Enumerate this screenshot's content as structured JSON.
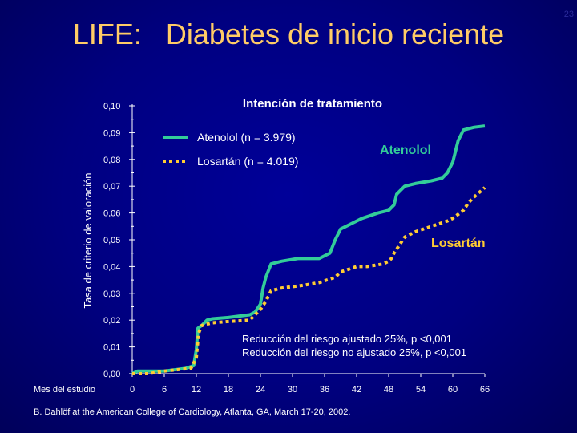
{
  "slide_number": "23",
  "title": "LIFE:   Diabetes de inicio reciente",
  "citation": "B. Dahlöf at the American College of Cardiology, Atlanta, GA,  March 17-20, 2002.",
  "colors": {
    "background": "#000080",
    "title": "#ffcc66",
    "atenolol": "#33cc99",
    "losartan": "#ffcc33",
    "text": "#ffffff"
  },
  "chart_data": {
    "type": "line",
    "title": "Intención de tratamiento",
    "xlabel": "Mes del estudio",
    "ylabel": "Tasa de criterio de valoración",
    "x_ticks": [
      "0",
      "6",
      "12",
      "18",
      "24",
      "30",
      "36",
      "42",
      "48",
      "54",
      "60",
      "66"
    ],
    "y_ticks": [
      "0,00",
      "0,01",
      "0,02",
      "0,03",
      "0,04",
      "0,05",
      "0,06",
      "0,07",
      "0,08",
      "0,09",
      "0,10"
    ],
    "xlim": [
      0,
      66
    ],
    "ylim": [
      0,
      0.1
    ],
    "legend": [
      "Atenolol  (n = 3.979)",
      "Losartán (n = 4.019)"
    ],
    "annotations": {
      "atenolol_label": "Atenolol",
      "losartan_label": "Losartán",
      "adjusted": "Reducción del riesgo ajustado        25%,  p <0,001",
      "unadjusted": "Reducción del riesgo no ajustado  25%, p <0,001"
    },
    "series": [
      {
        "name": "Atenolol",
        "points": [
          [
            0,
            0.0
          ],
          [
            1,
            0.001
          ],
          [
            3,
            0.001
          ],
          [
            6,
            0.001
          ],
          [
            10,
            0.002
          ],
          [
            11.5,
            0.003
          ],
          [
            12,
            0.009
          ],
          [
            12.3,
            0.017
          ],
          [
            13,
            0.018
          ],
          [
            14,
            0.02
          ],
          [
            15,
            0.0205
          ],
          [
            18,
            0.021
          ],
          [
            22,
            0.022
          ],
          [
            23,
            0.023
          ],
          [
            24,
            0.026
          ],
          [
            24.5,
            0.032
          ],
          [
            25,
            0.036
          ],
          [
            26,
            0.041
          ],
          [
            28,
            0.042
          ],
          [
            31,
            0.043
          ],
          [
            33,
            0.043
          ],
          [
            35,
            0.043
          ],
          [
            36,
            0.044
          ],
          [
            37,
            0.045
          ],
          [
            38,
            0.05
          ],
          [
            39,
            0.054
          ],
          [
            40,
            0.055
          ],
          [
            41,
            0.056
          ],
          [
            43,
            0.058
          ],
          [
            46,
            0.06
          ],
          [
            48,
            0.061
          ],
          [
            49,
            0.063
          ],
          [
            49.5,
            0.067
          ],
          [
            51,
            0.07
          ],
          [
            53,
            0.071
          ],
          [
            56,
            0.072
          ],
          [
            58,
            0.073
          ],
          [
            59,
            0.075
          ],
          [
            60,
            0.079
          ],
          [
            61,
            0.087
          ],
          [
            62,
            0.091
          ],
          [
            64,
            0.092
          ],
          [
            66,
            0.0925
          ]
        ]
      },
      {
        "name": "Losartán",
        "points": [
          [
            0,
            0.0
          ],
          [
            3,
            0.0
          ],
          [
            6,
            0.001
          ],
          [
            11,
            0.002
          ],
          [
            12,
            0.006
          ],
          [
            12.4,
            0.015
          ],
          [
            13,
            0.018
          ],
          [
            15,
            0.019
          ],
          [
            18,
            0.0195
          ],
          [
            22,
            0.02
          ],
          [
            23,
            0.022
          ],
          [
            24,
            0.024
          ],
          [
            25,
            0.027
          ],
          [
            26,
            0.031
          ],
          [
            28,
            0.032
          ],
          [
            32,
            0.033
          ],
          [
            35,
            0.034
          ],
          [
            38,
            0.036
          ],
          [
            39,
            0.038
          ],
          [
            42,
            0.04
          ],
          [
            44,
            0.04
          ],
          [
            47,
            0.041
          ],
          [
            48,
            0.042
          ],
          [
            48.5,
            0.043
          ],
          [
            49,
            0.045
          ],
          [
            50,
            0.048
          ],
          [
            51,
            0.051
          ],
          [
            53,
            0.053
          ],
          [
            56,
            0.055
          ],
          [
            59,
            0.057
          ],
          [
            60,
            0.058
          ],
          [
            62,
            0.061
          ],
          [
            63,
            0.064
          ],
          [
            64,
            0.066
          ],
          [
            66,
            0.0695
          ]
        ]
      }
    ]
  }
}
